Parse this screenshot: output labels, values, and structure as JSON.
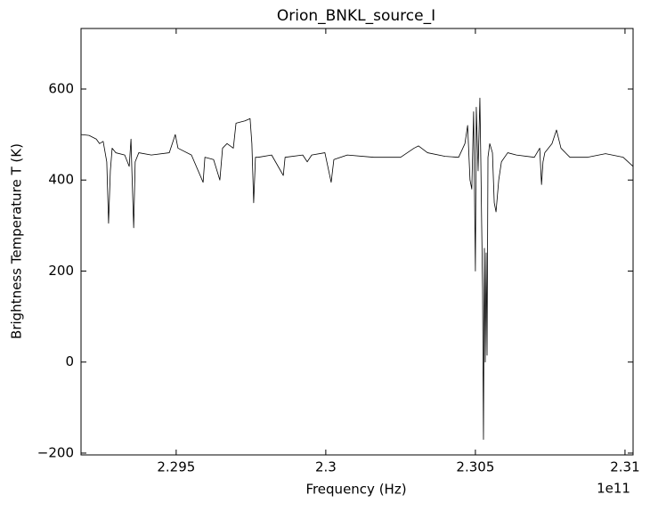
{
  "chart_data": {
    "type": "line",
    "title": "Orion_BNKL_source_I",
    "x_label": "Frequency (Hz)",
    "x_offset_label": "1e11",
    "y_label": "Brightness Temperature T (K)",
    "color": "#000000",
    "x": [
      2.29182,
      2.29209,
      2.29233,
      2.29244,
      2.29256,
      2.29268,
      2.29274,
      2.2928,
      2.29286,
      2.29298,
      2.29328,
      2.29343,
      2.29349,
      2.29352,
      2.29358,
      2.29363,
      2.29375,
      2.29417,
      2.29477,
      2.29497,
      2.29506,
      2.29551,
      2.2959,
      2.29596,
      2.29625,
      2.29646,
      2.29655,
      2.2967,
      2.29691,
      2.297,
      2.2973,
      2.29747,
      2.29753,
      2.29759,
      2.29765,
      2.29774,
      2.29819,
      2.29858,
      2.29864,
      2.29923,
      2.29938,
      2.29953,
      2.29997,
      2.30018,
      2.30027,
      2.30072,
      2.30161,
      2.3025,
      2.30295,
      2.3031,
      2.3034,
      2.30399,
      2.30444,
      2.30465,
      2.30474,
      2.30482,
      2.30488,
      2.30494,
      2.305,
      2.30503,
      2.30509,
      2.30515,
      2.30518,
      2.30521,
      2.30524,
      2.30527,
      2.3053,
      2.30533,
      2.30536,
      2.30539,
      2.30542,
      2.30548,
      2.30557,
      2.30563,
      2.30569,
      2.30578,
      2.30587,
      2.30608,
      2.30637,
      2.30697,
      2.30715,
      2.30721,
      2.30726,
      2.30732,
      2.30756,
      2.30771,
      2.30786,
      2.30816,
      2.30875,
      2.30935,
      2.30994,
      2.31027
    ],
    "values": [
      500,
      498,
      490,
      480,
      485,
      440,
      305,
      420,
      470,
      460,
      455,
      430,
      490,
      420,
      295,
      440,
      460,
      455,
      460,
      500,
      470,
      455,
      395,
      450,
      445,
      400,
      470,
      480,
      470,
      525,
      530,
      535,
      480,
      350,
      450,
      450,
      455,
      410,
      450,
      455,
      440,
      455,
      460,
      395,
      445,
      455,
      450,
      450,
      470,
      475,
      460,
      452,
      450,
      480,
      520,
      400,
      380,
      550,
      200,
      560,
      420,
      580,
      450,
      300,
      160,
      -170,
      250,
      0,
      240,
      15,
      450,
      480,
      460,
      350,
      330,
      400,
      440,
      460,
      455,
      450,
      470,
      390,
      440,
      460,
      480,
      510,
      470,
      450,
      450,
      458,
      450,
      430
    ],
    "xlim": [
      2.29182,
      2.31027
    ],
    "xticks": [
      2.295,
      2.3,
      2.305,
      2.31
    ],
    "ylim": [
      -204,
      733
    ],
    "yticks": [
      {
        "value": -200,
        "label": "−200"
      },
      0,
      200,
      400,
      600
    ]
  }
}
